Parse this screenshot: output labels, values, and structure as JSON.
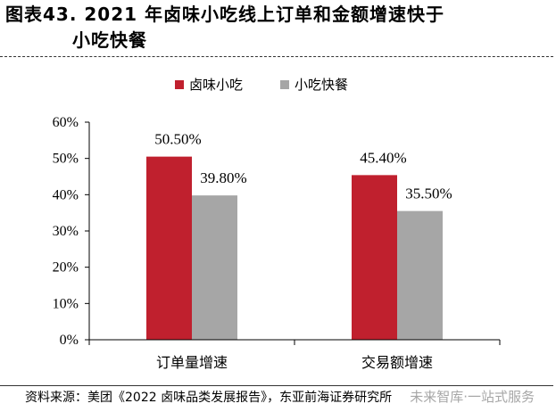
{
  "header": {
    "title_line1": "图表43.  2021  年卤味小吃线上订单和金额增速快于",
    "title_line2": "小吃快餐"
  },
  "footer": {
    "source": "资料来源：美团《2022 卤味品类发展报告》，东亚前海证券研究所",
    "watermark": "未来智库·一站式服务"
  },
  "chart_data": {
    "type": "bar",
    "categories": [
      "订单量增速",
      "交易额增速"
    ],
    "series": [
      {
        "name": "卤味小吃",
        "values": [
          50.5,
          45.4
        ],
        "labels": [
          "50.50%",
          "45.40%"
        ],
        "color": "#c0202e"
      },
      {
        "name": "小吃快餐",
        "values": [
          39.8,
          35.5
        ],
        "labels": [
          "39.80%",
          "35.50%"
        ],
        "color": "#a6a6a6"
      }
    ],
    "ylim": [
      0,
      60
    ],
    "yticks": [
      "0%",
      "10%",
      "20%",
      "30%",
      "40%",
      "50%",
      "60%"
    ],
    "grid": false,
    "legend": "top"
  }
}
